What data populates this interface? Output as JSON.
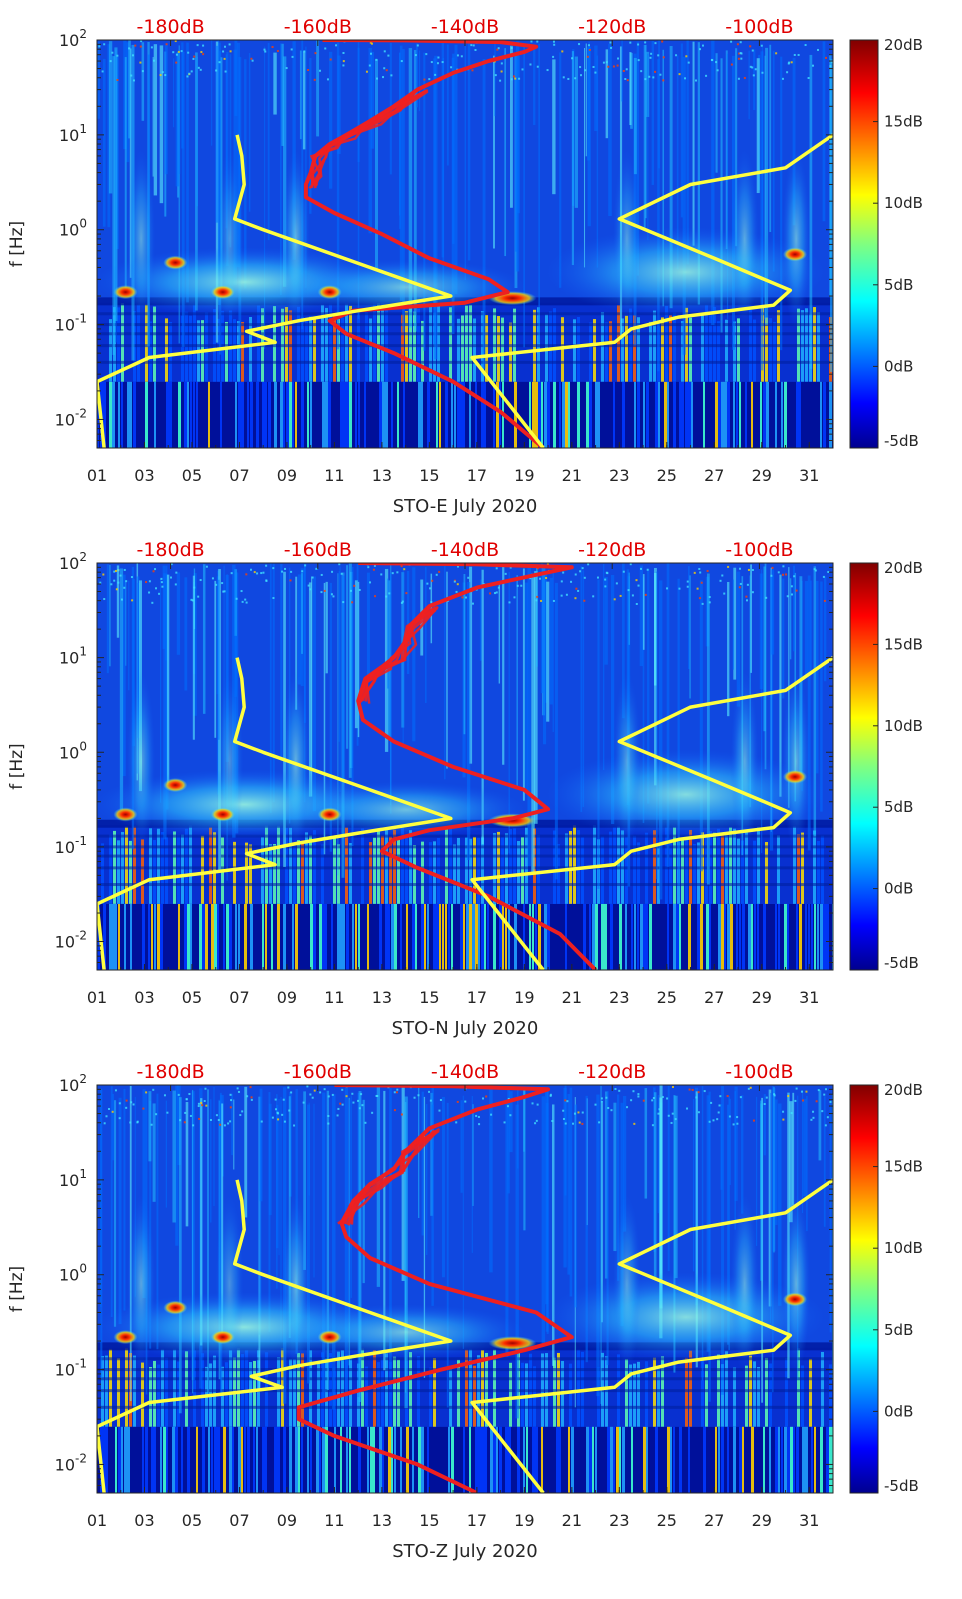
{
  "figure": {
    "colorbar": {
      "min_db": -5,
      "max_db": 20,
      "colormap": "jet",
      "ticks": [
        -5,
        0,
        5,
        10,
        15,
        20
      ],
      "tick_labels": [
        "-5dB",
        "0dB",
        "5dB",
        "10dB",
        "15dB",
        "20dB"
      ]
    },
    "colors": {
      "noise_model_curve": "#ee2020",
      "reference_curve": "#ffff40",
      "top_axis_labels": "#e00000",
      "axis": "#262626"
    }
  },
  "chart_data": [
    {
      "type": "heatmap",
      "title": "",
      "station": "STO-E",
      "xlabel": "STO-E July 2020",
      "ylabel": "f [Hz]",
      "x_range_days": [
        1,
        32
      ],
      "x_ticks": [
        "01",
        "03",
        "05",
        "07",
        "09",
        "11",
        "13",
        "15",
        "17",
        "19",
        "21",
        "23",
        "25",
        "27",
        "29",
        "31"
      ],
      "y_range_hz": [
        0.005,
        100
      ],
      "y_scale": "log",
      "y_tick_base": "10",
      "y_tick_exponents": [
        "-2",
        "-1",
        "0",
        "1",
        "2"
      ],
      "top_axis_labels": [
        "-180dB",
        "-160dB",
        "-140dB",
        "-120dB",
        "-100dB"
      ],
      "top_axis_range_db": [
        -190,
        -90
      ],
      "series": [
        {
          "name": "psd-red",
          "color": "#ee2020",
          "points": [
            [
              19.8,
              0.005
            ],
            [
              18,
              0.012
            ],
            [
              16,
              0.025
            ],
            [
              13.5,
              0.05
            ],
            [
              11.5,
              0.08
            ],
            [
              10.8,
              0.11
            ],
            [
              11.8,
              0.14
            ],
            [
              16.5,
              0.17
            ],
            [
              18.3,
              0.22
            ],
            [
              17.5,
              0.3
            ],
            [
              15,
              0.5
            ],
            [
              13,
              0.9
            ],
            [
              11,
              1.5
            ],
            [
              9.8,
              2.2
            ],
            [
              9.8,
              3
            ],
            [
              10,
              4
            ],
            [
              10.2,
              6
            ],
            [
              10.8,
              8
            ],
            [
              11.5,
              10
            ],
            [
              12.5,
              14
            ],
            [
              13.5,
              20
            ],
            [
              14.5,
              30
            ],
            [
              16,
              45
            ],
            [
              17.5,
              60
            ],
            [
              19,
              75
            ],
            [
              19.5,
              85
            ],
            [
              18,
              95
            ],
            [
              14,
              99
            ],
            [
              10.5,
              100
            ]
          ]
        },
        {
          "name": "ref-yellow-left",
          "color": "#ffff40",
          "points": [
            [
              1.3,
              0.005
            ],
            [
              1,
              0.025
            ],
            [
              3.2,
              0.045
            ],
            [
              8.5,
              0.065
            ],
            [
              7.3,
              0.085
            ],
            [
              9.5,
              0.11
            ],
            [
              12,
              0.14
            ],
            [
              15.9,
              0.2
            ],
            [
              12.5,
              0.4
            ],
            [
              8,
              1
            ],
            [
              6.8,
              1.3
            ],
            [
              7.2,
              3
            ],
            [
              7.1,
              6
            ],
            [
              6.9,
              10
            ]
          ]
        },
        {
          "name": "ref-yellow-right",
          "color": "#ffff40",
          "points": [
            [
              19.8,
              0.005
            ],
            [
              16.8,
              0.045
            ],
            [
              22.8,
              0.065
            ],
            [
              23.5,
              0.09
            ],
            [
              25.5,
              0.12
            ],
            [
              29.5,
              0.16
            ],
            [
              30.2,
              0.23
            ],
            [
              27,
              0.5
            ],
            [
              23,
              1.3
            ],
            [
              26,
              3
            ],
            [
              30,
              4.5
            ],
            [
              32,
              10
            ]
          ]
        }
      ]
    },
    {
      "type": "heatmap",
      "title": "",
      "station": "STO-N",
      "xlabel": "STO-N July 2020",
      "ylabel": "f [Hz]",
      "x_range_days": [
        1,
        32
      ],
      "x_ticks": [
        "01",
        "03",
        "05",
        "07",
        "09",
        "11",
        "13",
        "15",
        "17",
        "19",
        "21",
        "23",
        "25",
        "27",
        "29",
        "31"
      ],
      "y_range_hz": [
        0.005,
        100
      ],
      "y_scale": "log",
      "y_tick_base": "10",
      "y_tick_exponents": [
        "-2",
        "-1",
        "0",
        "1",
        "2"
      ],
      "top_axis_labels": [
        "-180dB",
        "-160dB",
        "-140dB",
        "-120dB",
        "-100dB"
      ],
      "top_axis_range_db": [
        -190,
        -90
      ],
      "series": [
        {
          "name": "psd-red",
          "color": "#ee2020",
          "points": [
            [
              22,
              0.005
            ],
            [
              20.5,
              0.012
            ],
            [
              17.5,
              0.03
            ],
            [
              14.5,
              0.06
            ],
            [
              13,
              0.09
            ],
            [
              13.5,
              0.12
            ],
            [
              15,
              0.15
            ],
            [
              18.5,
              0.2
            ],
            [
              20,
              0.25
            ],
            [
              19,
              0.4
            ],
            [
              16,
              0.7
            ],
            [
              13.5,
              1.3
            ],
            [
              12.2,
              2.2
            ],
            [
              12,
              3.5
            ],
            [
              12.3,
              6
            ],
            [
              13,
              8
            ],
            [
              13.5,
              10
            ],
            [
              14,
              15
            ],
            [
              14.2,
              22
            ],
            [
              15,
              35
            ],
            [
              17,
              55
            ],
            [
              19.5,
              75
            ],
            [
              21,
              90
            ],
            [
              17,
              97
            ],
            [
              12,
              100
            ]
          ]
        },
        {
          "name": "ref-yellow-left",
          "color": "#ffff40",
          "points": [
            [
              1.3,
              0.005
            ],
            [
              1,
              0.025
            ],
            [
              3.2,
              0.045
            ],
            [
              8.5,
              0.065
            ],
            [
              7.3,
              0.085
            ],
            [
              9.5,
              0.11
            ],
            [
              12,
              0.14
            ],
            [
              15.9,
              0.2
            ],
            [
              12.5,
              0.4
            ],
            [
              8,
              1
            ],
            [
              6.8,
              1.3
            ],
            [
              7.2,
              3
            ],
            [
              7.1,
              6
            ],
            [
              6.9,
              10
            ]
          ]
        },
        {
          "name": "ref-yellow-right",
          "color": "#ffff40",
          "points": [
            [
              19.8,
              0.005
            ],
            [
              16.8,
              0.045
            ],
            [
              22.8,
              0.065
            ],
            [
              23.5,
              0.09
            ],
            [
              25.5,
              0.12
            ],
            [
              29.5,
              0.16
            ],
            [
              30.2,
              0.23
            ],
            [
              27,
              0.5
            ],
            [
              23,
              1.3
            ],
            [
              26,
              3
            ],
            [
              30,
              4.5
            ],
            [
              32,
              10
            ]
          ]
        }
      ]
    },
    {
      "type": "heatmap",
      "title": "",
      "station": "STO-Z",
      "xlabel": "STO-Z July 2020",
      "ylabel": "f [Hz]",
      "x_range_days": [
        1,
        32
      ],
      "x_ticks": [
        "01",
        "03",
        "05",
        "07",
        "09",
        "11",
        "13",
        "15",
        "17",
        "19",
        "21",
        "23",
        "25",
        "27",
        "29",
        "31"
      ],
      "y_range_hz": [
        0.005,
        100
      ],
      "y_scale": "log",
      "y_tick_base": "10",
      "y_tick_exponents": [
        "-2",
        "-1",
        "0",
        "1",
        "2"
      ],
      "top_axis_labels": [
        "-180dB",
        "-160dB",
        "-140dB",
        "-120dB",
        "-100dB"
      ],
      "top_axis_range_db": [
        -190,
        -90
      ],
      "series": [
        {
          "name": "psd-red",
          "color": "#ee2020",
          "points": [
            [
              17,
              0.005
            ],
            [
              14.5,
              0.01
            ],
            [
              11,
              0.02
            ],
            [
              9.5,
              0.03
            ],
            [
              9.5,
              0.04
            ],
            [
              12,
              0.06
            ],
            [
              15.5,
              0.1
            ],
            [
              19,
              0.16
            ],
            [
              21,
              0.22
            ],
            [
              19.5,
              0.4
            ],
            [
              15,
              0.8
            ],
            [
              12.5,
              1.5
            ],
            [
              11.5,
              2.5
            ],
            [
              11.3,
              3.5
            ],
            [
              11.8,
              6
            ],
            [
              12.5,
              9
            ],
            [
              13.5,
              13
            ],
            [
              14,
              20
            ],
            [
              15,
              35
            ],
            [
              17,
              55
            ],
            [
              19,
              75
            ],
            [
              20,
              90
            ],
            [
              16,
              97
            ],
            [
              11,
              100
            ]
          ]
        },
        {
          "name": "ref-yellow-left",
          "color": "#ffff40",
          "points": [
            [
              1.3,
              0.005
            ],
            [
              1,
              0.025
            ],
            [
              3.2,
              0.045
            ],
            [
              8.8,
              0.065
            ],
            [
              7.5,
              0.085
            ],
            [
              9.5,
              0.11
            ],
            [
              12,
              0.14
            ],
            [
              15.9,
              0.2
            ],
            [
              12.5,
              0.4
            ],
            [
              8,
              1
            ],
            [
              6.8,
              1.3
            ],
            [
              7.2,
              3
            ],
            [
              7.1,
              6
            ],
            [
              6.9,
              10
            ]
          ]
        },
        {
          "name": "ref-yellow-right",
          "color": "#ffff40",
          "points": [
            [
              19.8,
              0.005
            ],
            [
              16.8,
              0.045
            ],
            [
              22.8,
              0.065
            ],
            [
              23.5,
              0.09
            ],
            [
              25.5,
              0.12
            ],
            [
              29.5,
              0.16
            ],
            [
              30.2,
              0.23
            ],
            [
              27,
              0.5
            ],
            [
              23,
              1.3
            ],
            [
              26,
              3
            ],
            [
              30,
              4.5
            ],
            [
              32,
              10
            ]
          ]
        }
      ]
    }
  ]
}
